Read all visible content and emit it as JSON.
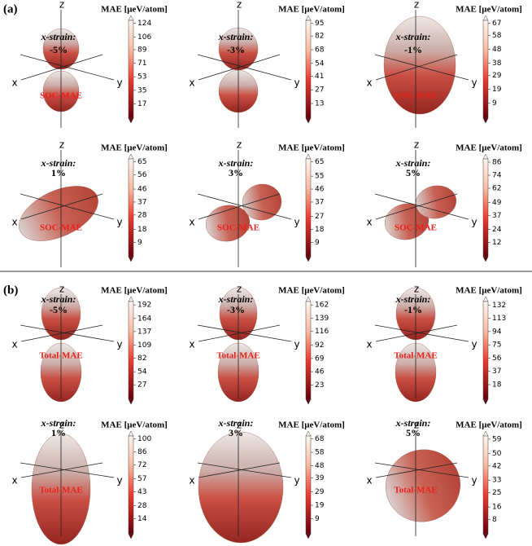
{
  "figure": {
    "axis_labels": {
      "x": "x",
      "y": "y",
      "z": "z"
    },
    "strain_prefix": "x-strain:",
    "colorbar_title": "MAE [μeV/atom]",
    "sections": [
      {
        "label": "(a)",
        "panels": [
          {
            "strain": "-5%",
            "mae_label": "SOC-MAE",
            "clim": [
              -2,
              128
            ],
            "ticks": [
              17,
              35,
              53,
              71,
              89,
              106,
              124
            ]
          },
          {
            "strain": "-3%",
            "clim": [
              -2,
              98
            ],
            "ticks": [
              13,
              27,
              41,
              54,
              68,
              82,
              95
            ]
          },
          {
            "strain": "-1%",
            "mae_label": "SOC-MAE",
            "clim": [
              -2,
              69
            ],
            "ticks": [
              9,
              19,
              29,
              38,
              48,
              58,
              67
            ]
          },
          {
            "strain": "1%",
            "mae_label": "SOC-MAE",
            "clim": [
              -1,
              67
            ],
            "ticks": [
              9,
              18,
              28,
              37,
              46,
              56,
              65
            ]
          },
          {
            "strain": "3%",
            "mae_label": "SOC-MAE",
            "clim": [
              -1,
              67
            ],
            "ticks": [
              9,
              18,
              27,
              37,
              46,
              55,
              65
            ]
          },
          {
            "strain": "5%",
            "mae_label": "SOC-MAE",
            "clim": [
              -1,
              89
            ],
            "ticks": [
              12,
              24,
              37,
              49,
              62,
              74,
              86
            ]
          }
        ]
      },
      {
        "label": "(b)",
        "panels": [
          {
            "strain": "-5%",
            "mae_label": "Total-MAE",
            "clim": [
              -3,
              199
            ],
            "ticks": [
              27,
              54,
              82,
              109,
              137,
              164,
              192
            ]
          },
          {
            "strain": "-3%",
            "mae_label": "Total-MAE",
            "clim": [
              -2,
              168
            ],
            "ticks": [
              23,
              46,
              69,
              92,
              116,
              139,
              162
            ]
          },
          {
            "strain": "-1%",
            "mae_label": "Total-MAE",
            "clim": [
              -3,
              137
            ],
            "ticks": [
              18,
              37,
              56,
              75,
              94,
              113,
              132
            ]
          },
          {
            "strain": "1%",
            "mae_label": "Total-MAE",
            "clim": [
              -2,
              103
            ],
            "ticks": [
              14,
              28,
              43,
              57,
              72,
              86,
              100
            ]
          },
          {
            "strain": "3%",
            "clim": [
              -2,
              70
            ],
            "ticks": [
              9,
              19,
              29,
              39,
              48,
              58,
              68
            ]
          },
          {
            "strain": "5%",
            "mae_label": "Total-MAE",
            "clim": [
              -1,
              61
            ],
            "ticks": [
              8,
              16,
              25,
              33,
              42,
              50,
              59
            ]
          }
        ]
      }
    ]
  }
}
